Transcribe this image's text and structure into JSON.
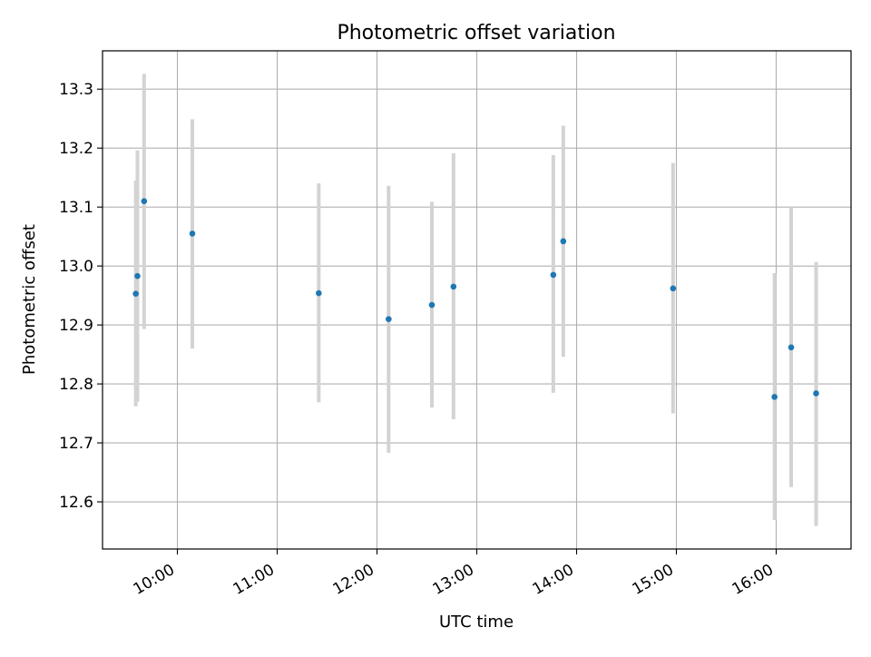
{
  "chart_data": {
    "type": "scatter",
    "title": "Photometric offset variation",
    "xlabel": "UTC time",
    "ylabel": "Photometric offset",
    "x_ticks": [
      "10:00",
      "11:00",
      "12:00",
      "13:00",
      "14:00",
      "15:00",
      "16:00"
    ],
    "y_ticks": [
      "12.6",
      "12.7",
      "12.8",
      "12.9",
      "13.0",
      "13.1",
      "13.2",
      "13.3"
    ],
    "xlim": [
      "09:15",
      "16:45"
    ],
    "ylim": [
      12.52,
      13.365
    ],
    "grid": true,
    "marker_color": "#1f77b4",
    "errorbar_color": "#d3d3d3",
    "points": [
      {
        "x": "09:35",
        "y": 12.953,
        "lo": 12.762,
        "hi": 13.145
      },
      {
        "x": "09:36",
        "y": 12.983,
        "lo": 12.77,
        "hi": 13.196
      },
      {
        "x": "09:40",
        "y": 13.11,
        "lo": 12.893,
        "hi": 13.326
      },
      {
        "x": "10:09",
        "y": 13.055,
        "lo": 12.86,
        "hi": 13.249
      },
      {
        "x": "11:25",
        "y": 12.954,
        "lo": 12.769,
        "hi": 13.14
      },
      {
        "x": "12:07",
        "y": 12.91,
        "lo": 12.683,
        "hi": 13.136
      },
      {
        "x": "12:33",
        "y": 12.934,
        "lo": 12.76,
        "hi": 13.109
      },
      {
        "x": "12:46",
        "y": 12.965,
        "lo": 12.74,
        "hi": 13.191
      },
      {
        "x": "13:46",
        "y": 12.985,
        "lo": 12.785,
        "hi": 13.188
      },
      {
        "x": "13:52",
        "y": 13.042,
        "lo": 12.846,
        "hi": 13.238
      },
      {
        "x": "14:58",
        "y": 12.962,
        "lo": 12.75,
        "hi": 13.175
      },
      {
        "x": "15:59",
        "y": 12.778,
        "lo": 12.569,
        "hi": 12.988
      },
      {
        "x": "16:09",
        "y": 12.862,
        "lo": 12.625,
        "hi": 13.1
      },
      {
        "x": "16:24",
        "y": 12.784,
        "lo": 12.559,
        "hi": 13.007
      }
    ]
  }
}
